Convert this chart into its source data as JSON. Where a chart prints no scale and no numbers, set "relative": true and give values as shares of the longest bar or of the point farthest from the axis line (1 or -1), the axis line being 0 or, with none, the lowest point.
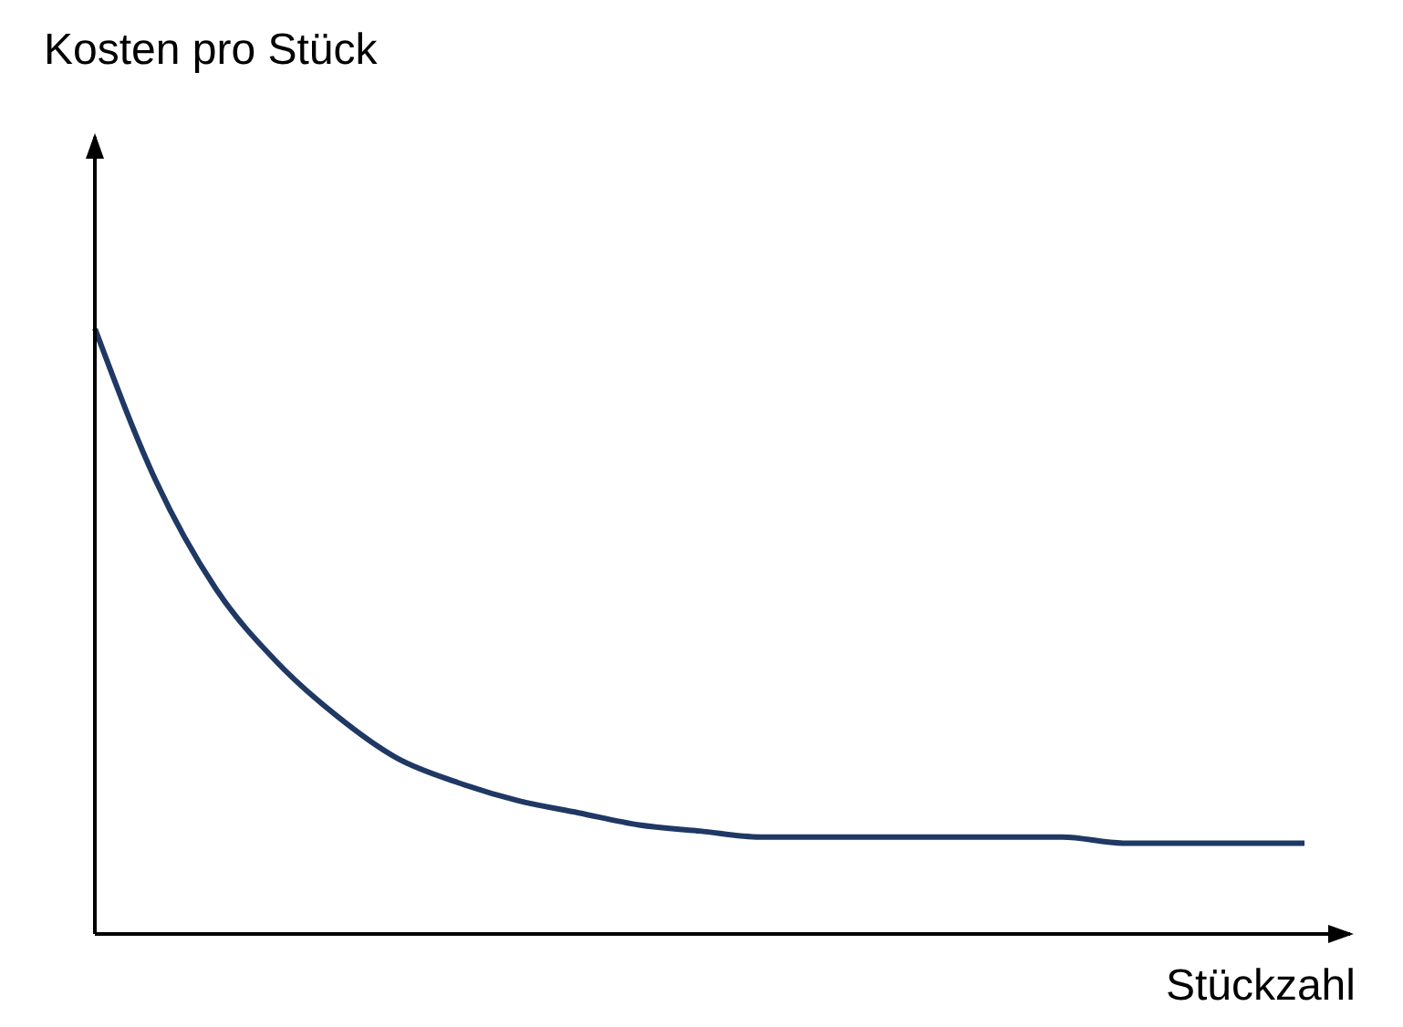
{
  "chart_data": {
    "type": "line",
    "relative": true,
    "annotations": [
      "Kosten pro Stück"
    ],
    "xlabel": "Stückzahl",
    "categories": [
      null,
      null,
      null,
      null,
      null,
      null,
      null,
      null,
      null,
      null,
      null,
      null,
      null,
      null,
      null,
      null,
      null,
      null,
      null,
      null,
      null
    ],
    "series": [
      {
        "color": "#1f3864",
        "values": [
          1,
          0.75,
          0.57,
          0.45,
          0.36,
          0.29,
          0.25,
          0.22,
          0.2,
          0.18,
          0.17,
          0.16,
          0.16,
          0.16,
          0.16,
          0.16,
          0.16,
          0.15,
          0.15,
          0.15,
          0.15
        ]
      }
    ],
    "marker": "none"
  }
}
